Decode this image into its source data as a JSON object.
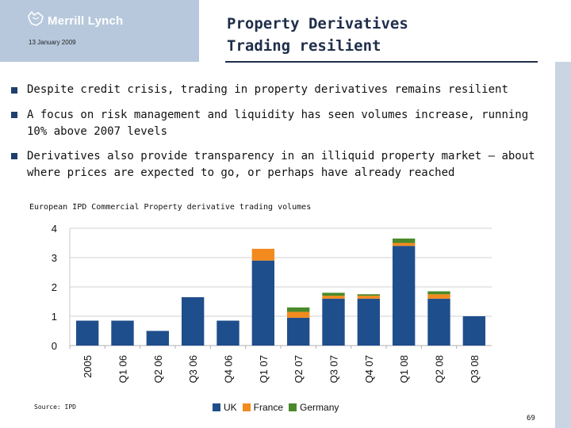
{
  "header": {
    "brand": "Merrill Lynch",
    "date": "13 January 2009",
    "title_line1": "Property Derivatives",
    "title_line2": "Trading resilient"
  },
  "bullets": [
    {
      "text": "Despite credit crisis, trading in property derivatives remains resilient"
    },
    {
      "text": "A focus on risk management and liquidity has seen volumes increase, running 10% above 2007 levels"
    },
    {
      "text": "Derivatives also provide transparency in an illiquid property market – about where prices are expected to go, or perhaps have already reached"
    }
  ],
  "footer": {
    "source": "Source: IPD",
    "page_number": "69"
  },
  "colors": {
    "uk": "#1f4e8c",
    "france": "#f28a1e",
    "germany": "#4a8a2a",
    "bullet": "#1f3f6e",
    "title": "#1f2e4a"
  },
  "chart_data": {
    "type": "bar",
    "stacked": true,
    "title": "European IPD Commercial Property derivative trading volumes",
    "categories": [
      "2005",
      "Q1 06",
      "Q2 06",
      "Q3 06",
      "Q4 06",
      "Q1 07",
      "Q2 07",
      "Q3 07",
      "Q4 07",
      "Q1 08",
      "Q2 08",
      "Q3 08"
    ],
    "series": [
      {
        "name": "UK",
        "color": "#1f4e8c",
        "values": [
          0.85,
          0.85,
          0.5,
          1.65,
          0.85,
          2.9,
          0.95,
          1.6,
          1.6,
          3.4,
          1.6,
          1.0
        ]
      },
      {
        "name": "France",
        "color": "#f28a1e",
        "values": [
          0,
          0,
          0,
          0,
          0,
          0.4,
          0.2,
          0.1,
          0.1,
          0.1,
          0.15,
          0
        ]
      },
      {
        "name": "Germany",
        "color": "#4a8a2a",
        "values": [
          0,
          0,
          0,
          0,
          0,
          0,
          0.15,
          0.1,
          0.05,
          0.15,
          0.1,
          0
        ]
      }
    ],
    "ylim": [
      0,
      4
    ],
    "yticks": [
      "0",
      "1",
      "2",
      "3",
      "4"
    ],
    "xlabel": "",
    "ylabel": "",
    "grid": true,
    "legend": "bottom"
  }
}
